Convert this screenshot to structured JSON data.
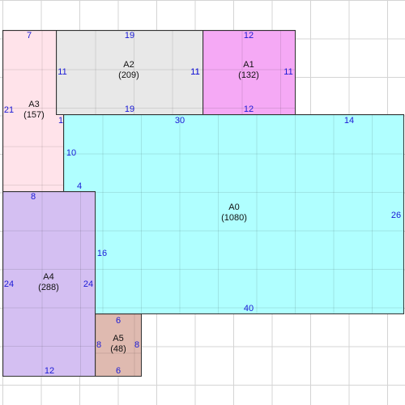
{
  "rooms": [
    {
      "id": "A0",
      "area": "(1080)",
      "color": "#b0ffff",
      "dims": {
        "top_left": "30",
        "top_right": "14",
        "right": "26",
        "bottom": "40",
        "left_top": "10",
        "left_step": "4",
        "left_bottom": "16",
        "notch": "1"
      }
    },
    {
      "id": "A1",
      "area": "(132)",
      "color": "#f5a9f5",
      "dims": {
        "top": "12",
        "left": "11",
        "right": "11",
        "bottom": "12"
      }
    },
    {
      "id": "A2",
      "area": "(209)",
      "color": "#e8e8e8",
      "dims": {
        "top": "19",
        "left": "11",
        "right": "11",
        "bottom": "19"
      }
    },
    {
      "id": "A3",
      "area": "(157)",
      "color": "#ffe3ea",
      "dims": {
        "top": "7",
        "left": "21"
      }
    },
    {
      "id": "A4",
      "area": "(288)",
      "color": "#d4bff2",
      "dims": {
        "top": "8",
        "left": "24",
        "right": "24",
        "bottom": "12"
      }
    },
    {
      "id": "A5",
      "area": "(48)",
      "color": "#dfbab0",
      "dims": {
        "top": "6",
        "left": "8",
        "right": "8",
        "bottom": "6"
      }
    }
  ]
}
